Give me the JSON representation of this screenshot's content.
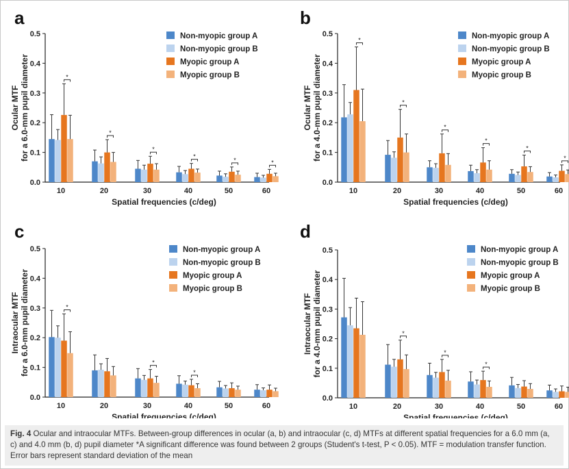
{
  "legend": {
    "entries": [
      "Non-myopic group A",
      "Non-myopic group B",
      "Myopic group A",
      "Myopic group B"
    ],
    "colors": [
      "#4d87c9",
      "#bcd3ee",
      "#e6761f",
      "#f3b27b"
    ]
  },
  "chart_data": [
    {
      "panel": "a",
      "type": "bar",
      "ylabel": [
        "Ocular MTF",
        "for a 6.0-mm pupil diameter"
      ],
      "xlabel": "Spatial frequencies (c/deg)",
      "categories": [
        "10",
        "20",
        "30",
        "40",
        "50",
        "60"
      ],
      "ylim": [
        0,
        0.5
      ],
      "yticks": [
        "0.0",
        "0.1",
        "0.2",
        "0.3",
        "0.4",
        "0.5"
      ],
      "significance_marker": "*",
      "significant": [
        true,
        true,
        true,
        true,
        true,
        true
      ],
      "series": [
        {
          "name": "Non-myopic group A",
          "values": [
            0.145,
            0.07,
            0.045,
            0.033,
            0.022,
            0.017
          ],
          "sd": [
            0.082,
            0.038,
            0.028,
            0.02,
            0.015,
            0.013
          ]
        },
        {
          "name": "Non-myopic group B",
          "values": [
            0.142,
            0.063,
            0.042,
            0.027,
            0.018,
            0.015
          ],
          "sd": [
            0.035,
            0.022,
            0.015,
            0.012,
            0.01,
            0.008
          ]
        },
        {
          "name": "Myopic group A",
          "values": [
            0.226,
            0.1,
            0.062,
            0.045,
            0.035,
            0.028
          ],
          "sd": [
            0.105,
            0.043,
            0.025,
            0.018,
            0.016,
            0.015
          ]
        },
        {
          "name": "Myopic group B",
          "values": [
            0.145,
            0.068,
            0.042,
            0.032,
            0.025,
            0.02
          ],
          "sd": [
            0.08,
            0.032,
            0.02,
            0.012,
            0.012,
            0.01
          ]
        }
      ]
    },
    {
      "panel": "b",
      "type": "bar",
      "ylabel": [
        "Ocular MTF",
        "for a 4.0-mm pupil diameter"
      ],
      "xlabel": "Spatial frequencies (c/deg)",
      "categories": [
        "10",
        "20",
        "30",
        "40",
        "50",
        "60"
      ],
      "ylim": [
        0,
        0.5
      ],
      "yticks": [
        "0.0",
        "0.1",
        "0.2",
        "0.3",
        "0.4",
        "0.5"
      ],
      "significance_marker": "*",
      "significant": [
        true,
        true,
        true,
        true,
        true,
        true
      ],
      "series": [
        {
          "name": "Non-myopic group A",
          "values": [
            0.218,
            0.092,
            0.05,
            0.037,
            0.028,
            0.019
          ],
          "sd": [
            0.11,
            0.048,
            0.022,
            0.02,
            0.014,
            0.013
          ]
        },
        {
          "name": "Non-myopic group B",
          "values": [
            0.228,
            0.082,
            0.048,
            0.03,
            0.024,
            0.016
          ],
          "sd": [
            0.04,
            0.02,
            0.014,
            0.012,
            0.01,
            0.008
          ]
        },
        {
          "name": "Myopic group A",
          "values": [
            0.31,
            0.15,
            0.097,
            0.066,
            0.053,
            0.038
          ],
          "sd": [
            0.145,
            0.095,
            0.065,
            0.05,
            0.038,
            0.02
          ]
        },
        {
          "name": "Myopic group B",
          "values": [
            0.205,
            0.1,
            0.058,
            0.042,
            0.034,
            0.027
          ],
          "sd": [
            0.108,
            0.062,
            0.038,
            0.03,
            0.018,
            0.014
          ]
        }
      ]
    },
    {
      "panel": "c",
      "type": "bar",
      "ylabel": [
        "Intraocular MTF",
        "for a 6.0-mm pupil diameter"
      ],
      "xlabel": "Spatial frequencies (c/deg)",
      "categories": [
        "10",
        "20",
        "30",
        "40",
        "50",
        "60"
      ],
      "ylim": [
        0,
        0.5
      ],
      "yticks": [
        "0.0",
        "0.1",
        "0.2",
        "0.3",
        "0.4",
        "0.5"
      ],
      "significance_marker": "*",
      "significant": [
        true,
        false,
        true,
        true,
        false,
        false
      ],
      "series": [
        {
          "name": "Non-myopic group A",
          "values": [
            0.202,
            0.09,
            0.063,
            0.045,
            0.033,
            0.025
          ],
          "sd": [
            0.09,
            0.052,
            0.033,
            0.027,
            0.02,
            0.017
          ]
        },
        {
          "name": "Non-myopic group B",
          "values": [
            0.2,
            0.092,
            0.058,
            0.042,
            0.029,
            0.023
          ],
          "sd": [
            0.04,
            0.02,
            0.015,
            0.012,
            0.01,
            0.008
          ]
        },
        {
          "name": "Myopic group A",
          "values": [
            0.19,
            0.087,
            0.063,
            0.04,
            0.03,
            0.025
          ],
          "sd": [
            0.09,
            0.043,
            0.03,
            0.02,
            0.018,
            0.016
          ]
        },
        {
          "name": "Myopic group B",
          "values": [
            0.148,
            0.073,
            0.048,
            0.03,
            0.025,
            0.02
          ],
          "sd": [
            0.072,
            0.03,
            0.022,
            0.015,
            0.012,
            0.01
          ]
        }
      ]
    },
    {
      "panel": "d",
      "type": "bar",
      "ylabel": [
        "Intraocular MTF",
        "for a 4.0-mm pupil diameter"
      ],
      "xlabel": "Spatial frequencies (c/deg)",
      "categories": [
        "10",
        "20",
        "30",
        "40",
        "50",
        "60"
      ],
      "ylim": [
        0,
        0.5
      ],
      "yticks": [
        "0.0",
        "0.1",
        "0.2",
        "0.3",
        "0.4",
        "0.5"
      ],
      "significance_marker": "*",
      "significant": [
        false,
        true,
        true,
        true,
        false,
        false
      ],
      "series": [
        {
          "name": "Non-myopic group A",
          "values": [
            0.272,
            0.112,
            0.077,
            0.055,
            0.042,
            0.025
          ],
          "sd": [
            0.132,
            0.068,
            0.04,
            0.033,
            0.027,
            0.018
          ]
        },
        {
          "name": "Non-myopic group B",
          "values": [
            0.245,
            0.105,
            0.068,
            0.045,
            0.033,
            0.02
          ],
          "sd": [
            0.06,
            0.025,
            0.018,
            0.015,
            0.012,
            0.01
          ]
        },
        {
          "name": "Myopic group A",
          "values": [
            0.235,
            0.13,
            0.087,
            0.06,
            0.038,
            0.022
          ],
          "sd": [
            0.102,
            0.065,
            0.043,
            0.03,
            0.02,
            0.018
          ]
        },
        {
          "name": "Myopic group B",
          "values": [
            0.213,
            0.097,
            0.058,
            0.037,
            0.03,
            0.02
          ],
          "sd": [
            0.112,
            0.048,
            0.035,
            0.02,
            0.018,
            0.016
          ]
        }
      ]
    }
  ],
  "caption": {
    "label": "Fig. 4",
    "text": "Ocular and intraocular MTFs. Between-group differences in ocular (a, b) and intraocular (c, d) MTFs at different spatial frequencies for a 6.0 mm (a, c) and 4.0 mm (b, d) pupil diameter *A significant difference was found between 2 groups (Student's t-test, P < 0.05). MTF = modulation transfer function. Error bars represent standard deviation of the mean"
  }
}
